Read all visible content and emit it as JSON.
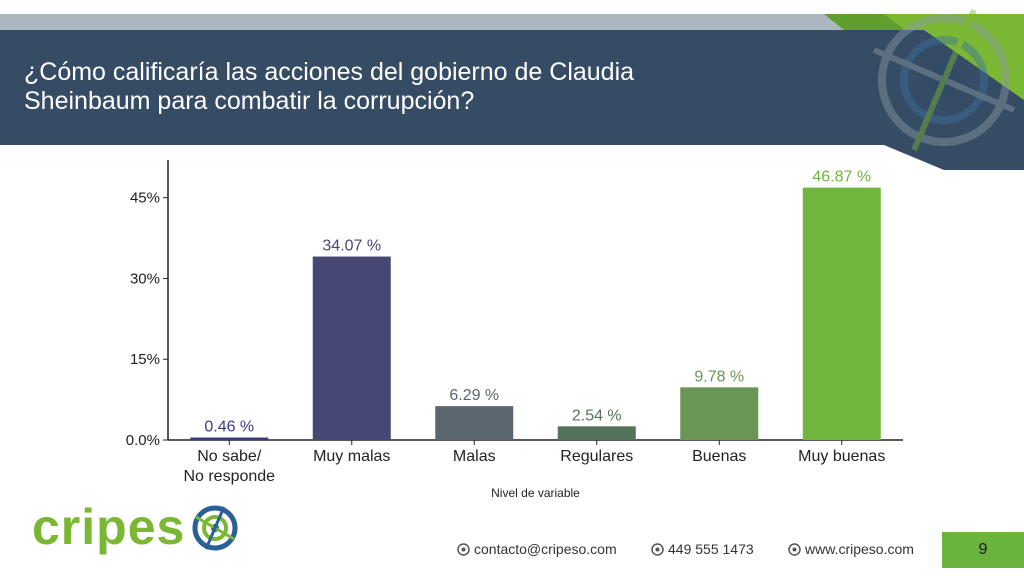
{
  "header": {
    "title_line1": "¿Cómo calificaría las acciones del gobierno de Claudia",
    "title_line2": "Sheinbaum para combatir la corrupción?"
  },
  "chart_data": {
    "type": "bar",
    "categories": [
      [
        "No sabe/",
        "No responde"
      ],
      [
        "Muy malas"
      ],
      [
        "Malas"
      ],
      [
        "Regulares"
      ],
      [
        "Buenas"
      ],
      [
        "Muy buenas"
      ]
    ],
    "values": [
      0.46,
      34.07,
      6.29,
      2.54,
      9.78,
      46.87
    ],
    "data_labels": [
      "0.46 %",
      "34.07 %",
      "6.29 %",
      "2.54 %",
      "9.78 %",
      "46.87 %"
    ],
    "colors": [
      "#3a3a8c",
      "#474773",
      "#5c6670",
      "#55735a",
      "#6a9655",
      "#6fb53e"
    ],
    "label_colors": [
      "#3a3a8c",
      "#474773",
      "#5c6670",
      "#55735a",
      "#6a9655",
      "#6fb53e"
    ],
    "y_ticks": [
      0,
      15,
      30,
      45
    ],
    "y_tick_labels": [
      "0.0%",
      "15%",
      "30%",
      "45%"
    ],
    "ylim": [
      0,
      52
    ],
    "xlabel": "Nivel de variable",
    "ylabel": "",
    "grid": false
  },
  "brand": {
    "logo_text_green": "cripes",
    "logo_text_blue": "o",
    "accent": "#6ab43e",
    "dark_blue": "#354c64"
  },
  "footer": {
    "email": "contacto@cripeso.com",
    "phone": "449 555 1473",
    "website": "www.cripeso.com",
    "page_number": "9"
  }
}
